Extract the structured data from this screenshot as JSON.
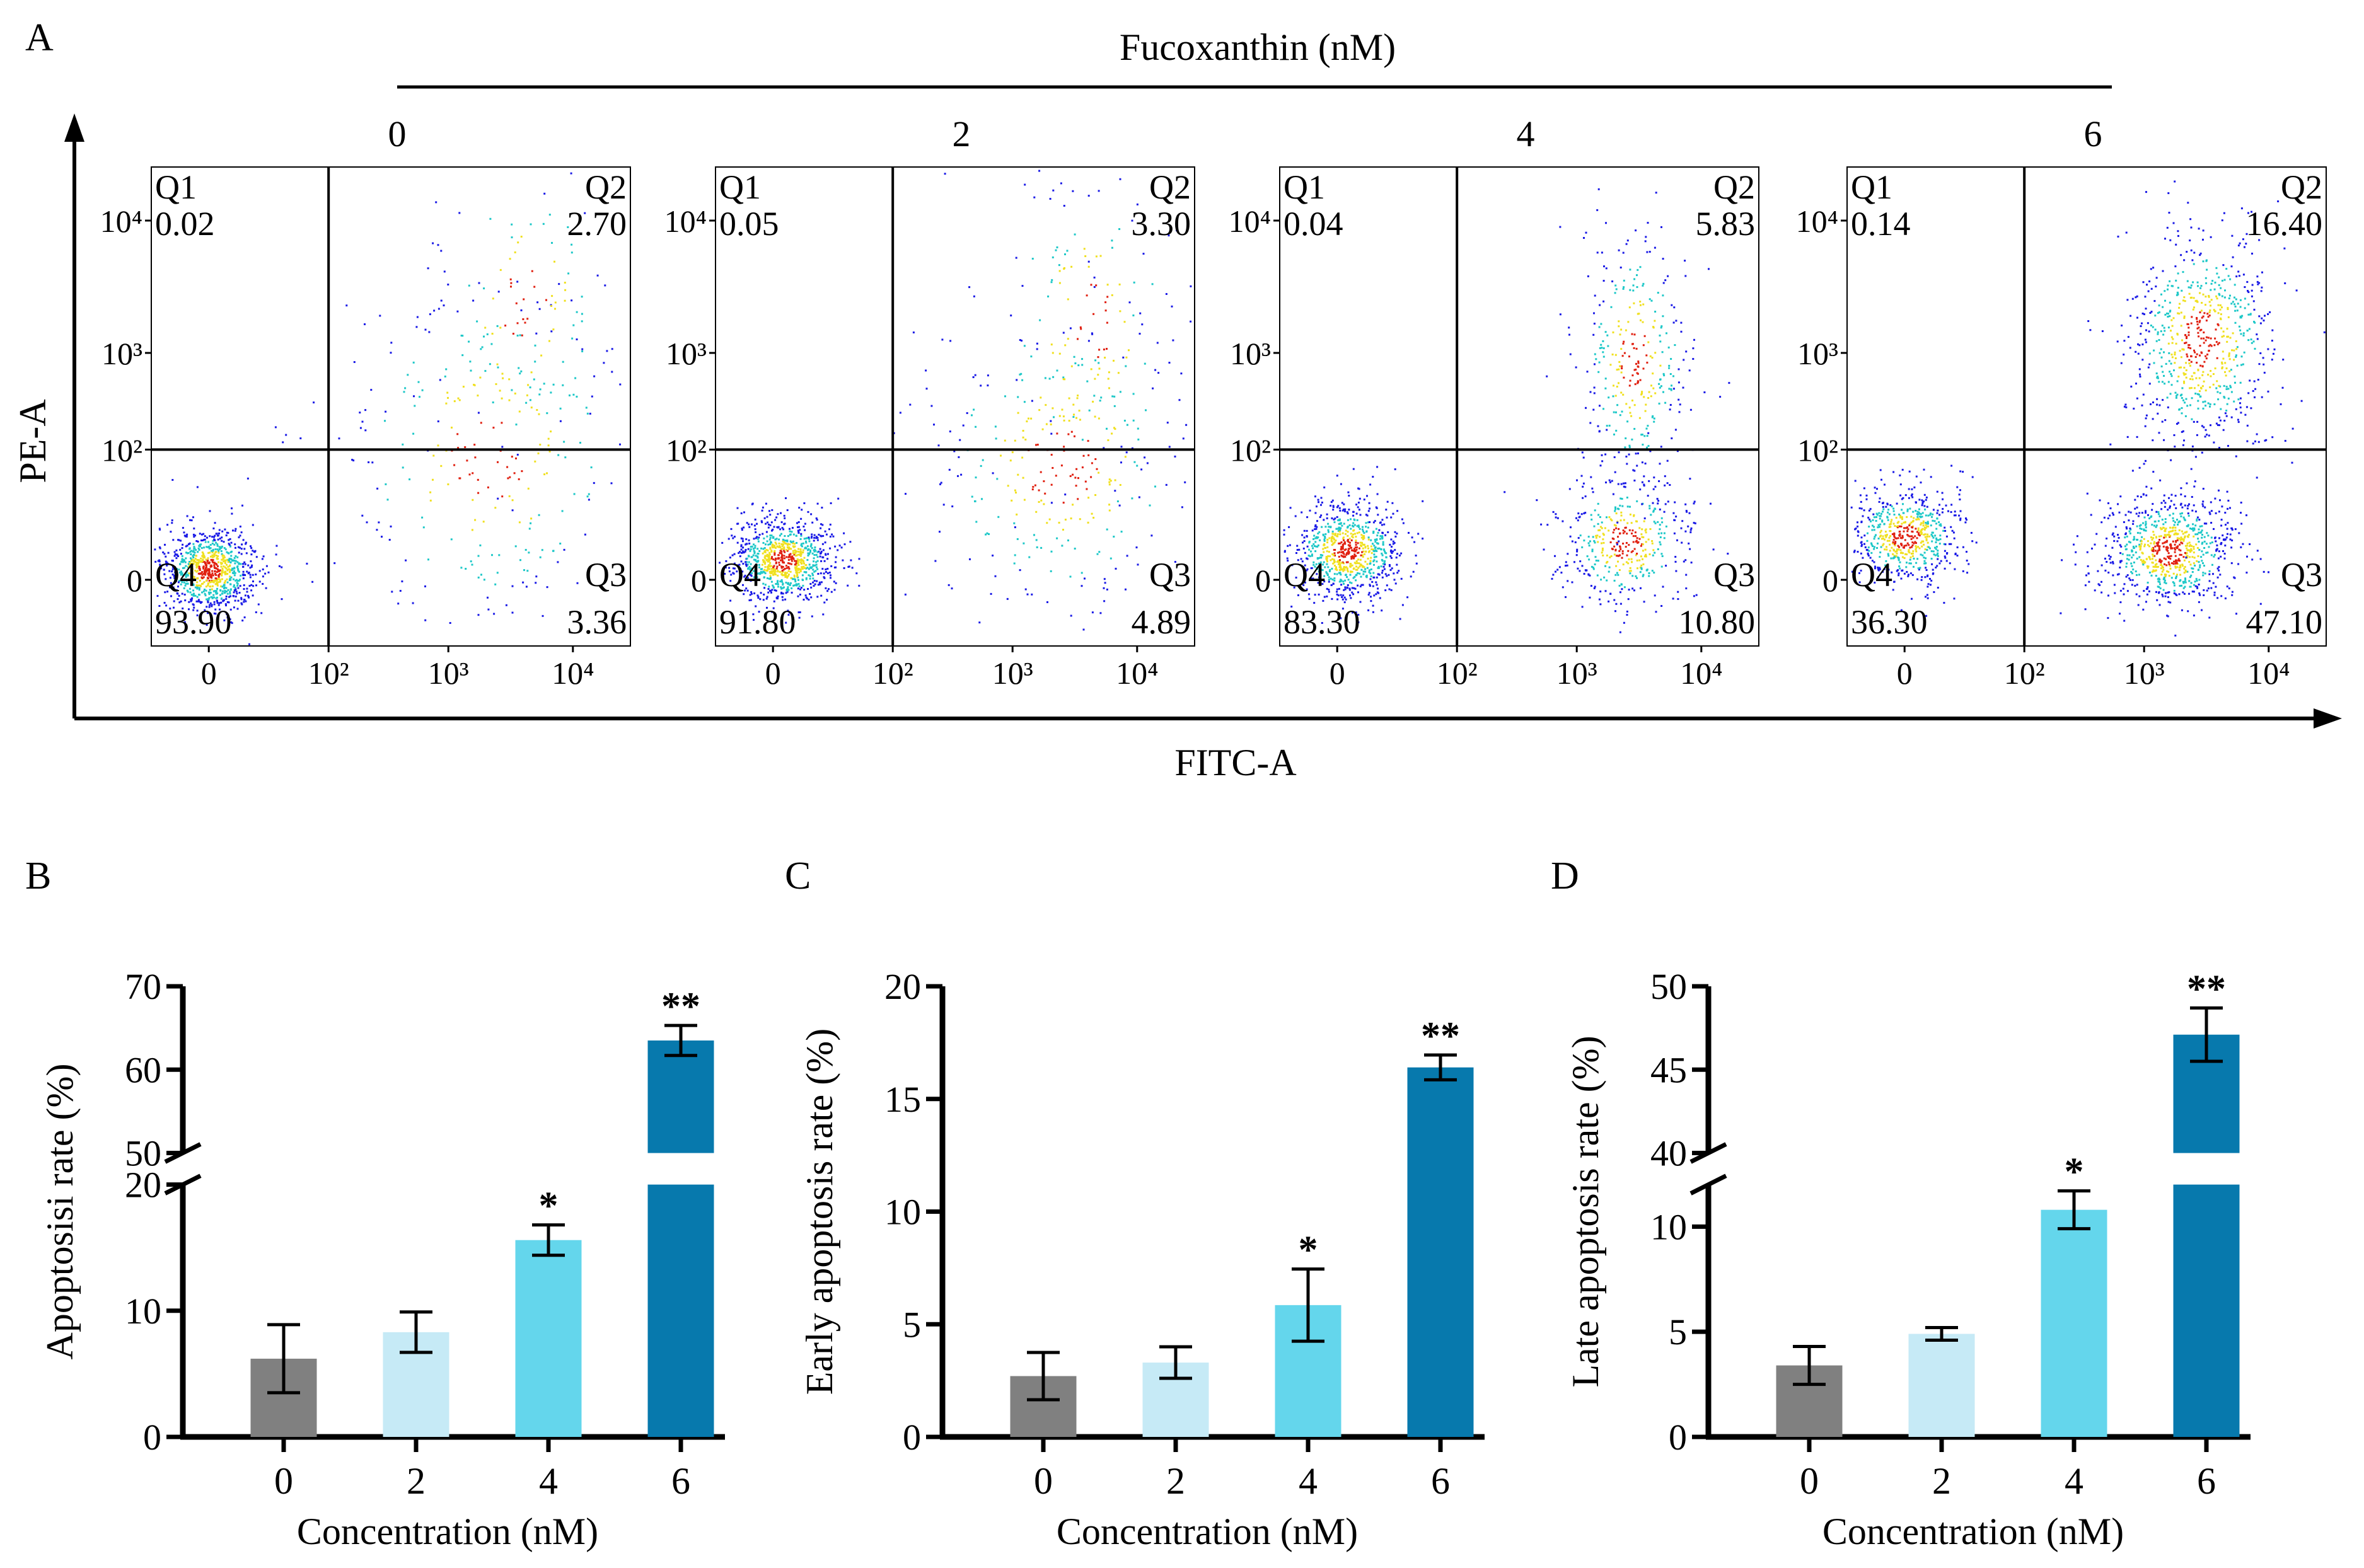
{
  "panel_a": {
    "label": "A",
    "treatment_label": "Fucoxanthin (nM)",
    "y_axis_label": "PE-A",
    "x_axis_label": "FITC-A",
    "y_ticks": [
      "10⁴",
      "10³",
      "10²",
      "0"
    ],
    "x_ticks": [
      "0",
      "10²",
      "10³",
      "10⁴"
    ],
    "plots": [
      {
        "concentration": "0",
        "q1_label": "Q1",
        "q1": "0.02",
        "q2_label": "Q2",
        "q2": "2.70",
        "q3_label": "Q3",
        "q3": "3.36",
        "q4_label": "Q4",
        "q4": "93.90"
      },
      {
        "concentration": "2",
        "q1_label": "Q1",
        "q1": "0.05",
        "q2_label": "Q2",
        "q2": "3.30",
        "q3_label": "Q3",
        "q3": "4.89",
        "q4_label": "Q4",
        "q4": "91.80"
      },
      {
        "concentration": "4",
        "q1_label": "Q1",
        "q1": "0.04",
        "q2_label": "Q2",
        "q2": "5.83",
        "q3_label": "Q3",
        "q3": "10.80",
        "q4_label": "Q4",
        "q4": "83.30"
      },
      {
        "concentration": "6",
        "q1_label": "Q1",
        "q1": "0.14",
        "q2_label": "Q2",
        "q2": "16.40",
        "q3_label": "Q3",
        "q3": "47.10",
        "q4_label": "Q4",
        "q4": "36.30"
      }
    ]
  },
  "colors": {
    "c0": "#808080",
    "c2": "#c6eaf6",
    "c4": "#64d6ec",
    "c6": "#0779ad",
    "scatter_low": "#1a1ae6",
    "scatter_mid": "#1ec8c8",
    "scatter_high": "#f0e020",
    "scatter_peak": "#e02010"
  },
  "chart_data": [
    {
      "panel": "B",
      "type": "bar",
      "ylabel": "Apoptosisi rate (%)",
      "xlabel": "Concentration (nM)",
      "categories": [
        "0",
        "2",
        "4",
        "6"
      ],
      "values": [
        6.2,
        8.3,
        15.6,
        63.5
      ],
      "errors": [
        2.7,
        1.6,
        1.2,
        1.8
      ],
      "significance": [
        "",
        "",
        "*",
        "**"
      ],
      "y_ticks": [
        "0",
        "10",
        "20",
        "50",
        "60",
        "70"
      ],
      "axis_break": {
        "lower_range": [
          0,
          20
        ],
        "upper_range": [
          50,
          70
        ]
      }
    },
    {
      "panel": "C",
      "type": "bar",
      "ylabel": "Early apoptosis rate (%)",
      "xlabel": "Concentration (nM)",
      "categories": [
        "0",
        "2",
        "4",
        "6"
      ],
      "values": [
        2.7,
        3.3,
        5.85,
        16.4
      ],
      "errors": [
        1.05,
        0.7,
        1.6,
        0.55
      ],
      "significance": [
        "",
        "",
        "*",
        "**"
      ],
      "y_ticks": [
        "0",
        "5",
        "10",
        "15",
        "20"
      ],
      "ylim": [
        0,
        20
      ]
    },
    {
      "panel": "D",
      "type": "bar",
      "ylabel": "Late apoptosis rate (%)",
      "xlabel": "Concentration (nM)",
      "categories": [
        "0",
        "2",
        "4",
        "6"
      ],
      "values": [
        3.4,
        4.9,
        10.8,
        47.1
      ],
      "errors": [
        0.9,
        0.3,
        0.9,
        1.6
      ],
      "significance": [
        "",
        "",
        "*",
        "**"
      ],
      "y_ticks": [
        "0",
        "5",
        "10",
        "40",
        "45",
        "50"
      ],
      "axis_break": {
        "lower_range": [
          0,
          12
        ],
        "upper_range": [
          40,
          50
        ]
      }
    }
  ]
}
